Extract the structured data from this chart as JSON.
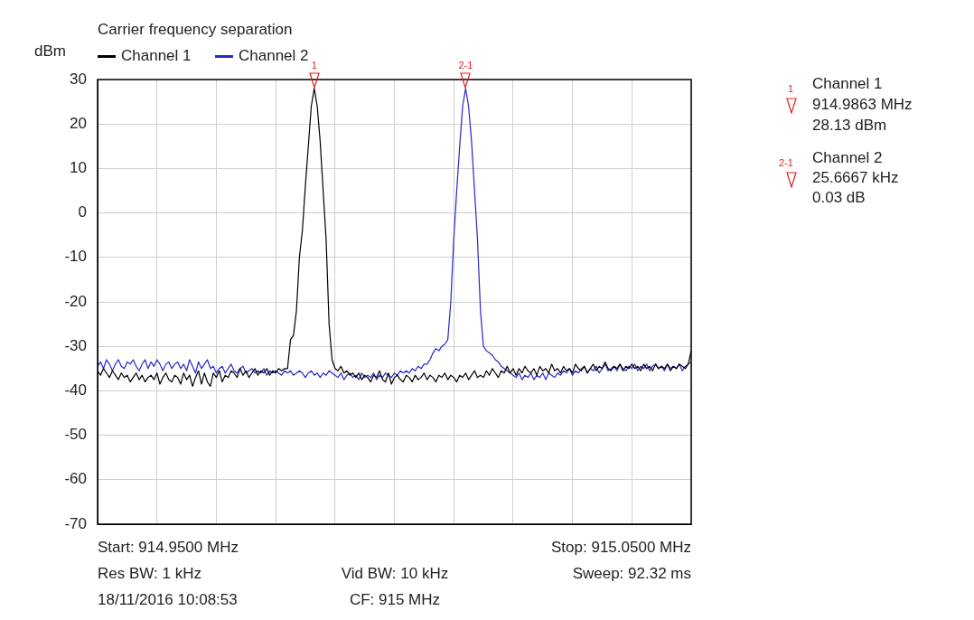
{
  "chart_data": {
    "type": "line",
    "title": "Carrier frequency separation",
    "ylabel": "dBm",
    "categories": [
      null,
      null,
      null,
      null,
      null,
      null,
      null,
      null,
      null,
      null,
      null,
      null,
      null,
      null,
      null,
      null,
      null,
      null,
      null,
      null,
      null,
      null,
      null,
      null,
      null,
      null,
      null,
      null,
      null,
      null,
      null,
      null,
      null,
      null,
      null,
      null,
      null,
      null,
      null,
      null,
      null,
      null,
      null,
      null,
      null,
      null,
      null,
      null,
      null,
      null,
      null,
      null,
      null,
      null,
      null,
      null,
      null,
      null,
      null,
      null,
      null,
      null,
      null,
      null,
      null,
      null,
      null,
      null,
      null,
      null,
      null,
      null,
      null,
      null,
      null,
      null,
      null,
      null,
      null,
      null,
      null,
      null,
      null,
      null,
      null,
      null,
      null,
      null,
      null,
      null,
      null,
      null,
      null,
      null,
      null,
      null,
      null,
      null,
      null,
      null,
      null,
      null,
      null,
      null,
      null,
      null,
      null,
      null,
      null,
      null,
      null,
      null,
      null,
      null,
      null,
      null,
      null,
      null,
      null,
      null,
      null,
      null,
      null,
      null,
      null,
      null,
      null,
      null,
      null,
      null,
      null,
      null,
      null,
      null,
      null,
      null,
      null,
      null,
      null,
      null,
      null,
      null,
      null,
      null,
      null,
      null,
      null,
      null,
      null,
      null,
      null,
      null,
      null,
      null,
      null,
      null,
      null,
      null,
      null,
      null,
      null,
      null,
      null,
      null,
      null,
      null,
      null,
      null,
      null,
      null,
      null,
      null,
      null,
      null,
      null,
      null,
      null,
      null,
      null,
      null,
      null,
      null,
      null,
      null,
      null,
      null,
      null,
      null,
      null,
      null,
      null,
      null,
      null,
      null,
      null,
      null,
      null,
      null,
      null,
      null,
      null
    ],
    "ylim": [
      -70,
      30
    ],
    "yticks": [
      30,
      20,
      10,
      0,
      -10,
      -20,
      -30,
      -40,
      -50,
      -60,
      -70
    ],
    "tick_labels": "y",
    "grid": true,
    "legend": "top left",
    "marker": "none",
    "line_style": "solid",
    "series": [
      {
        "name": "Channel 1",
        "color": "#000000",
        "values": [
          -35.5,
          -36.5,
          -35,
          -36,
          -37,
          -35.5,
          -36.5,
          -37.5,
          -36,
          -37,
          -36.5,
          -38,
          -37,
          -36,
          -37.5,
          -36.5,
          -38,
          -37,
          -36.5,
          -37.5,
          -36,
          -38.5,
          -37,
          -36,
          -37.5,
          -38,
          -36.5,
          -37,
          -38.5,
          -36,
          -37.5,
          -36.5,
          -39,
          -37,
          -35.5,
          -38.5,
          -36,
          -38,
          -39,
          -36,
          -37,
          -35.5,
          -38,
          -36.5,
          -37,
          -35.5,
          -36,
          -37,
          -35,
          -36.5,
          -35.5,
          -37,
          -36,
          -35,
          -36.5,
          -35.5,
          -36,
          -35,
          -36.5,
          -35.5,
          -36,
          -35,
          -35.5,
          -35,
          -35,
          -28.5,
          -27.5,
          -22,
          -10,
          -4,
          6,
          15,
          24,
          28,
          24,
          16,
          5,
          -6,
          -25,
          -33,
          -35,
          -35.5,
          -34.5,
          -36,
          -35.5,
          -36.5,
          -36,
          -37,
          -36,
          -37.5,
          -36.5,
          -37,
          -38,
          -36.5,
          -37,
          -35.5,
          -37.5,
          -38,
          -36,
          -38.5,
          -37,
          -36.5,
          -37.5,
          -38,
          -36.5,
          -37,
          -38,
          -36.5,
          -37.5,
          -37,
          -36,
          -37.5,
          -36.5,
          -37,
          -38,
          -36.5,
          -37,
          -36,
          -37.5,
          -36.5,
          -37,
          -38,
          -36.5,
          -37,
          -36,
          -37.5,
          -36.5,
          -35.5,
          -37,
          -36.5,
          -37,
          -35.5,
          -36.5,
          -35,
          -36,
          -37,
          -35.5,
          -36,
          -34.5,
          -36,
          -35,
          -36.5,
          -35,
          -36,
          -34.5,
          -35.5,
          -36,
          -35,
          -36.5,
          -34.5,
          -35.5,
          -35,
          -36,
          -34,
          -35.5,
          -35,
          -36,
          -34.5,
          -35.5,
          -35,
          -36,
          -34,
          -35,
          -35.5,
          -34.5,
          -36,
          -35,
          -34,
          -35.5,
          -34.5,
          -35,
          -33.5,
          -35,
          -35.5,
          -34.5,
          -35,
          -34,
          -35.5,
          -34.5,
          -35,
          -34,
          -35,
          -34.5,
          -35.5,
          -34,
          -35,
          -34.5,
          -35.5,
          -34,
          -35,
          -34.5,
          -35,
          -34,
          -35.5,
          -34.5,
          -35,
          -34,
          -34.5,
          -35,
          -34,
          -31
        ]
      },
      {
        "name": "Channel 2",
        "color": "#2828c8",
        "values": [
          -34.5,
          -33.5,
          -35,
          -33,
          -34,
          -35.5,
          -34,
          -33,
          -34.5,
          -35,
          -33.5,
          -34,
          -33,
          -34.5,
          -35.5,
          -34,
          -33,
          -35,
          -33.5,
          -34.5,
          -33,
          -34,
          -35.5,
          -34,
          -33.5,
          -35,
          -34,
          -33.5,
          -35,
          -34,
          -35.5,
          -33,
          -34.5,
          -36,
          -33.5,
          -35,
          -34,
          -33,
          -35,
          -34.5,
          -36,
          -35,
          -34.5,
          -36,
          -35,
          -34,
          -35.5,
          -36,
          -35,
          -34.5,
          -36,
          -35.5,
          -35,
          -36,
          -35.5,
          -36,
          -35,
          -36.5,
          -35.5,
          -36,
          -35.5,
          -36,
          -36.5,
          -35.5,
          -36,
          -35.5,
          -36.5,
          -36,
          -35.5,
          -36,
          -37,
          -36,
          -35.5,
          -36.5,
          -36,
          -37,
          -36,
          -36.5,
          -35.5,
          -36,
          -36.5,
          -37,
          -36,
          -37.5,
          -36.5,
          -36,
          -37,
          -36.5,
          -37.5,
          -36,
          -37,
          -36.5,
          -37,
          -36,
          -37.5,
          -36.5,
          -37,
          -36,
          -36.5,
          -37,
          -36,
          -36.5,
          -35.5,
          -36,
          -35.5,
          -36,
          -35,
          -35.5,
          -34.5,
          -35,
          -34,
          -34,
          -33,
          -31.5,
          -30.5,
          -31,
          -30,
          -29.5,
          -28.5,
          -20,
          -6,
          5,
          15,
          24,
          28,
          24,
          16,
          5,
          -6,
          -22,
          -30,
          -31,
          -31.5,
          -32,
          -33,
          -33.5,
          -34.5,
          -35,
          -35.5,
          -36,
          -36.5,
          -37,
          -36,
          -37.5,
          -36.5,
          -37,
          -36,
          -37.5,
          -36.5,
          -37,
          -36,
          -37.5,
          -36,
          -36.5,
          -37,
          -36,
          -36.5,
          -35.5,
          -36,
          -35,
          -36.5,
          -35.5,
          -36,
          -35,
          -34.5,
          -36,
          -35,
          -35.5,
          -34.5,
          -36,
          -35,
          -34,
          -35.5,
          -35,
          -34.5,
          -35.5,
          -34,
          -35,
          -35.5,
          -34.5,
          -35,
          -34,
          -35.5,
          -34.5,
          -35,
          -34,
          -35.5,
          -34.5,
          -34,
          -35,
          -34.5,
          -35.5,
          -34,
          -35,
          -34.5,
          -35,
          -34,
          -35.5,
          -34.5,
          -34,
          -33.5
        ]
      }
    ],
    "annotations": [
      "1",
      "2-1",
      "Channel 1",
      "914.9863 MHz",
      "28.13 dBm",
      "Channel 2",
      "25.6667 kHz",
      "0.03 dB",
      "Start: 914.9500 MHz",
      "Stop: 915.0500 MHz",
      "Res BW: 1 kHz",
      "Vid BW: 10 kHz",
      "Sweep: 92.32 ms",
      "18/11/2016 10:08:53",
      "CF: 915 MHz"
    ]
  }
}
